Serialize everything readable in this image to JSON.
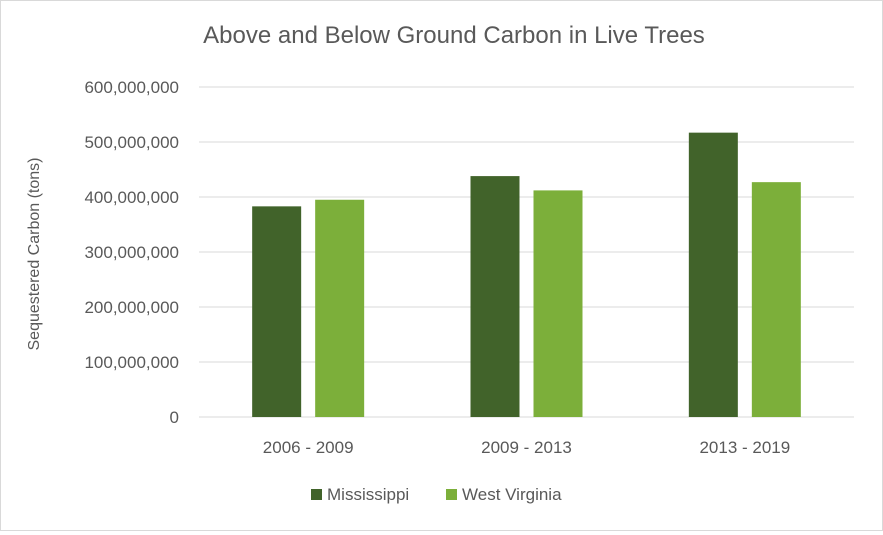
{
  "chart_data": {
    "type": "bar",
    "title": "Above and Below Ground Carbon in Live Trees",
    "xlabel": "",
    "ylabel": "Sequestered Carbon (tons)",
    "categories": [
      "2006 - 2009",
      "2009 - 2013",
      "2013 - 2019"
    ],
    "series": [
      {
        "name": "Mississippi",
        "color": "#41632a",
        "values": [
          383000000,
          438000000,
          517000000
        ]
      },
      {
        "name": "West Virginia",
        "color": "#7caf3a",
        "values": [
          395000000,
          412000000,
          427000000
        ]
      }
    ],
    "ylim": [
      0,
      600000000
    ],
    "yticks": [
      0,
      100000000,
      200000000,
      300000000,
      400000000,
      500000000,
      600000000
    ],
    "ytick_labels": [
      "0",
      "100,000,000",
      "200,000,000",
      "300,000,000",
      "400,000,000",
      "500,000,000",
      "600,000,000"
    ],
    "grid": true,
    "legend": "bottom"
  }
}
